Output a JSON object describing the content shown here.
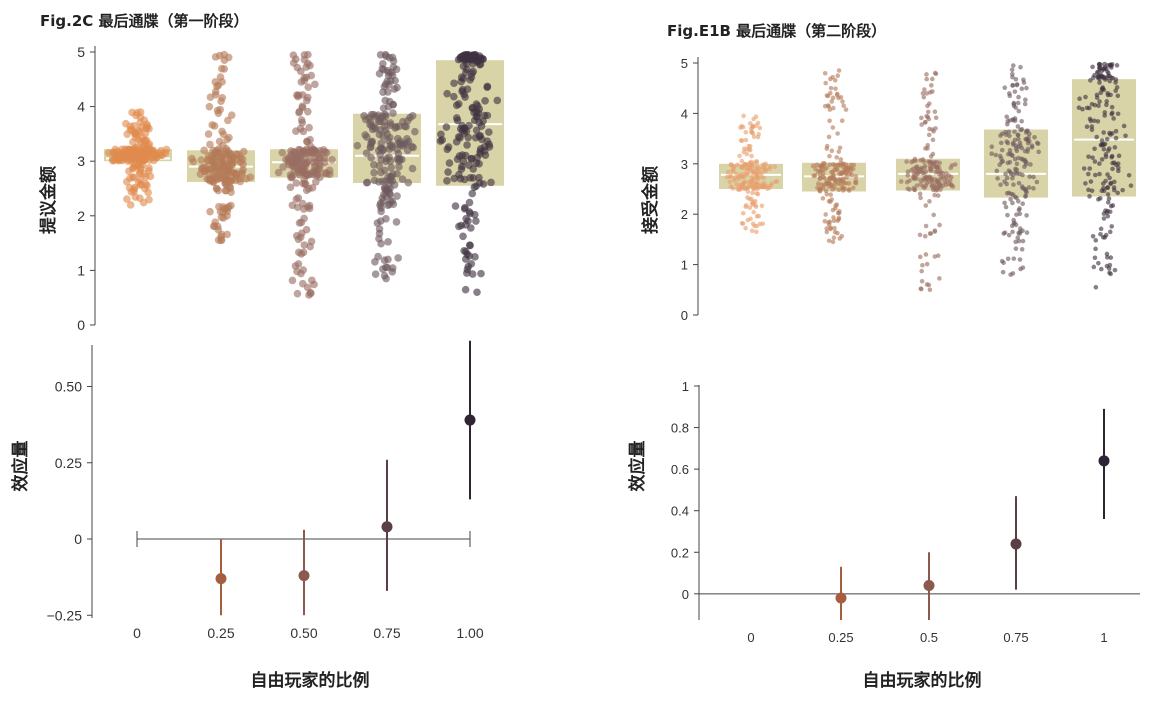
{
  "chart_data": [
    {
      "type": "scatter",
      "subtype": "beeswarm-with-iqr-box",
      "title": "Fig.2C 最后通牒（第一阶段）",
      "ylabel": "提议金额",
      "categories": [
        "0",
        "0.25",
        "0.50",
        "0.75",
        "1.00"
      ],
      "ylim": [
        0,
        5
      ],
      "yticks": [
        "0",
        "1",
        "2",
        "3",
        "4",
        "5"
      ],
      "boxes": [
        {
          "q1": 3.0,
          "median": 3.05,
          "q3": 3.22
        },
        {
          "q1": 2.62,
          "median": 2.9,
          "q3": 3.2
        },
        {
          "q1": 2.7,
          "median": 2.98,
          "q3": 3.22
        },
        {
          "q1": 2.6,
          "median": 3.1,
          "q3": 3.87
        },
        {
          "q1": 2.55,
          "median": 3.68,
          "q3": 4.85
        }
      ],
      "point_ranges": [
        {
          "min": 2.2,
          "max": 3.9
        },
        {
          "min": 1.55,
          "max": 4.95
        },
        {
          "min": 0.55,
          "max": 4.95
        },
        {
          "min": 0.85,
          "max": 4.95
        },
        {
          "min": 0.6,
          "max": 4.95
        }
      ],
      "colors": [
        "#e08a4e",
        "#b57a58",
        "#9a6e62",
        "#6e5a5e",
        "#3f3240"
      ],
      "box_color": "#d9d4a8"
    },
    {
      "type": "scatter",
      "subtype": "point-with-error-bars",
      "ylabel": "效应量",
      "xlabel": "自由玩家的比例",
      "categories": [
        "0",
        "0.25",
        "0.50",
        "0.75",
        "1.00"
      ],
      "yticks": [
        "−0.25",
        "0",
        "0.25",
        "0.50"
      ],
      "ylim": [
        -0.3,
        0.7
      ],
      "points": [
        {
          "x": "0.25",
          "y": -0.13,
          "low": -0.25,
          "high": 0.0
        },
        {
          "x": "0.50",
          "y": -0.12,
          "low": -0.25,
          "high": 0.03
        },
        {
          "x": "0.75",
          "y": 0.04,
          "low": -0.17,
          "high": 0.26
        },
        {
          "x": "1.00",
          "y": 0.39,
          "low": 0.13,
          "high": 0.65
        }
      ],
      "reference_range": {
        "from": "0",
        "to": "1.00",
        "y": 0
      }
    },
    {
      "type": "scatter",
      "subtype": "beeswarm-with-iqr-box",
      "title": "Fig.E1B 最后通牒（第二阶段）",
      "ylabel": "接受金额",
      "categories": [
        "0",
        "0.25",
        "0.5",
        "0.75",
        "1"
      ],
      "ylim": [
        0,
        5
      ],
      "yticks": [
        "0",
        "1",
        "2",
        "3",
        "4",
        "5"
      ],
      "boxes": [
        {
          "q1": 2.5,
          "median": 2.78,
          "q3": 3.0
        },
        {
          "q1": 2.45,
          "median": 2.75,
          "q3": 3.02
        },
        {
          "q1": 2.47,
          "median": 2.8,
          "q3": 3.1
        },
        {
          "q1": 2.33,
          "median": 2.8,
          "q3": 3.68
        },
        {
          "q1": 2.35,
          "median": 3.48,
          "q3": 4.68
        }
      ],
      "point_ranges": [
        {
          "min": 1.65,
          "max": 3.95
        },
        {
          "min": 1.45,
          "max": 4.85
        },
        {
          "min": 0.5,
          "max": 4.8
        },
        {
          "min": 0.8,
          "max": 4.95
        },
        {
          "min": 0.55,
          "max": 4.98
        }
      ],
      "colors": [
        "#e8a070",
        "#b57a58",
        "#9a6e62",
        "#6e5a5e",
        "#3f3240"
      ],
      "box_color": "#d9d4a8"
    },
    {
      "type": "scatter",
      "subtype": "point-with-error-bars",
      "ylabel": "效应量",
      "xlabel": "自由玩家的比例",
      "categories": [
        "0",
        "0.25",
        "0.5",
        "0.75",
        "1"
      ],
      "yticks": [
        "0",
        "0.2",
        "0.4",
        "0.6",
        "0.8",
        "1"
      ],
      "ylim": [
        -0.15,
        1.0
      ],
      "points": [
        {
          "x": "0.25",
          "y": -0.02,
          "low": -0.15,
          "high": 0.13
        },
        {
          "x": "0.5",
          "y": 0.04,
          "low": -0.15,
          "high": 0.2
        },
        {
          "x": "0.75",
          "y": 0.24,
          "low": 0.02,
          "high": 0.47
        },
        {
          "x": "1",
          "y": 0.64,
          "low": 0.36,
          "high": 0.89
        }
      ],
      "reference_line": {
        "y": 0
      }
    }
  ]
}
